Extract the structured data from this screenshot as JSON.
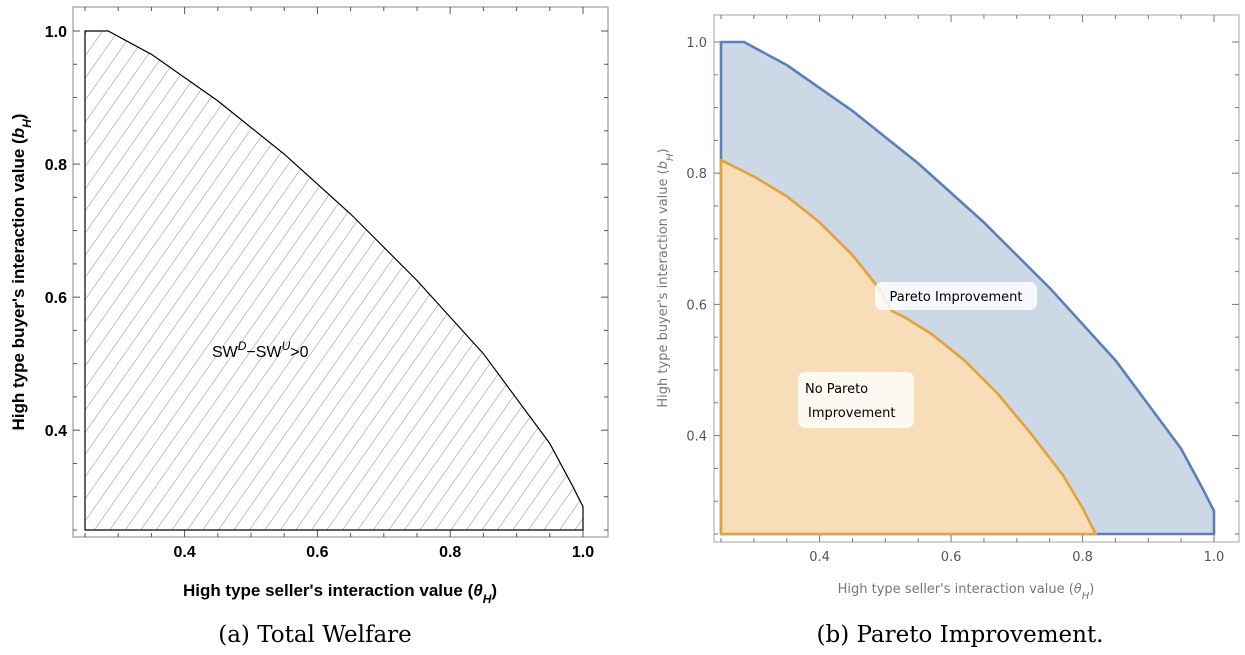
{
  "chart_data": [
    {
      "type": "area",
      "caption": "(a) Total Welfare",
      "xlabel_main": "High type seller's interaction value (",
      "xlabel_sym": "θ",
      "xlabel_sub": "H",
      "xlabel_end": ")",
      "ylabel_main": "High type buyer's interaction value (",
      "ylabel_sym": "b",
      "ylabel_sub": "H",
      "ylabel_end": ")",
      "xlim": [
        0.25,
        1.0
      ],
      "ylim": [
        0.25,
        1.0
      ],
      "xticks": [
        "0.4",
        "0.6",
        "0.8",
        "1.0"
      ],
      "yticks": [
        "0.4",
        "0.6",
        "0.8",
        "1.0"
      ],
      "region_label_parts": [
        "SW",
        "D",
        "−SW",
        "U",
        ">0"
      ],
      "regions": [
        {
          "name": "SW^D − SW^U > 0",
          "fill": "hatched",
          "boundary": [
            [
              0.25,
              0.25
            ],
            [
              0.25,
              1.0
            ],
            [
              0.285,
              1.0
            ],
            [
              0.35,
              0.965
            ],
            [
              0.45,
              0.895
            ],
            [
              0.55,
              0.815
            ],
            [
              0.65,
              0.725
            ],
            [
              0.75,
              0.625
            ],
            [
              0.85,
              0.515
            ],
            [
              0.95,
              0.38
            ],
            [
              0.985,
              0.315
            ],
            [
              1.0,
              0.285
            ],
            [
              1.0,
              0.25
            ]
          ]
        }
      ]
    },
    {
      "type": "area",
      "caption": "(b) Pareto Improvement.",
      "xlabel_main": "High type seller's interaction value (",
      "xlabel_sym": "θ",
      "xlabel_sub": "H",
      "xlabel_end": ")",
      "ylabel_main": "High type buyer's interaction value (",
      "ylabel_sym": "b",
      "ylabel_sub": "H",
      "ylabel_end": ")",
      "xlim": [
        0.25,
        1.0
      ],
      "ylim": [
        0.25,
        1.0
      ],
      "xticks": [
        "0.4",
        "0.6",
        "0.8",
        "1.0"
      ],
      "yticks": [
        "0.4",
        "0.6",
        "0.8",
        "1.0"
      ],
      "regions": [
        {
          "name": "Pareto Improvement",
          "label": "Pareto Improvement",
          "color": "#5b7fbb",
          "fill": "#cdd8e6",
          "boundary": [
            [
              0.25,
              0.25
            ],
            [
              0.25,
              1.0
            ],
            [
              0.285,
              1.0
            ],
            [
              0.35,
              0.965
            ],
            [
              0.45,
              0.895
            ],
            [
              0.55,
              0.815
            ],
            [
              0.65,
              0.725
            ],
            [
              0.75,
              0.625
            ],
            [
              0.85,
              0.515
            ],
            [
              0.95,
              0.38
            ],
            [
              0.985,
              0.315
            ],
            [
              1.0,
              0.285
            ],
            [
              1.0,
              0.25
            ]
          ]
        },
        {
          "name": "No Pareto Improvement",
          "label_lines": [
            "No Pareto",
            "Improvement"
          ],
          "color": "#e3a23a",
          "fill": "#f7deb9",
          "boundary": [
            [
              0.25,
              0.25
            ],
            [
              0.25,
              0.82
            ],
            [
              0.3,
              0.795
            ],
            [
              0.35,
              0.765
            ],
            [
              0.4,
              0.725
            ],
            [
              0.45,
              0.675
            ],
            [
              0.49,
              0.625
            ],
            [
              0.51,
              0.59
            ],
            [
              0.53,
              0.58
            ],
            [
              0.57,
              0.555
            ],
            [
              0.62,
              0.515
            ],
            [
              0.67,
              0.465
            ],
            [
              0.72,
              0.405
            ],
            [
              0.77,
              0.34
            ],
            [
              0.8,
              0.29
            ],
            [
              0.82,
              0.25
            ]
          ]
        }
      ]
    }
  ]
}
